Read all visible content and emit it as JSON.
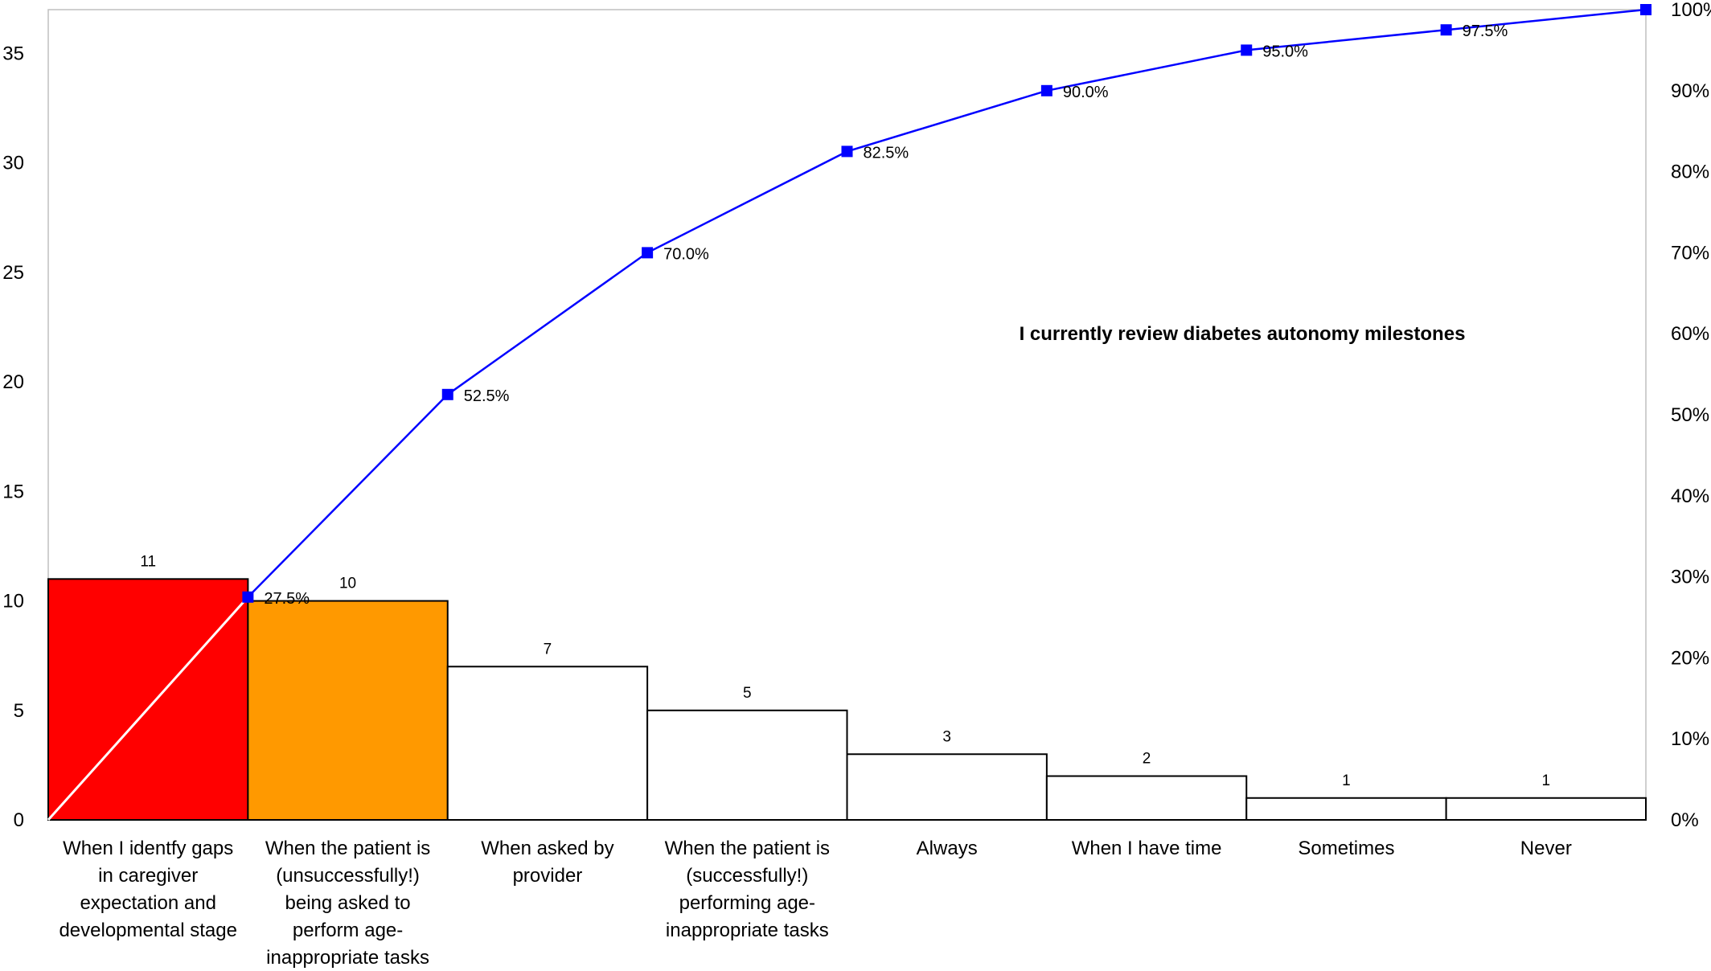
{
  "chart_data": {
    "type": "bar",
    "title": "I currently review diabetes autonomy milestones",
    "categories": [
      [
        "When I identfy gaps",
        "in caregiver",
        "expectation and",
        "developmental stage"
      ],
      [
        "When the patient is",
        "(unsuccessfully!)",
        "being asked to",
        "perform age-",
        "inappropriate tasks"
      ],
      [
        "When asked by",
        "provider"
      ],
      [
        "When the patient is",
        "(successfully!)",
        "performing age-",
        "inappropriate tasks"
      ],
      [
        "Always"
      ],
      [
        "When I have time"
      ],
      [
        "Sometimes"
      ],
      [
        "Never"
      ]
    ],
    "values": [
      11,
      10,
      7,
      5,
      3,
      2,
      1,
      1
    ],
    "value_labels": [
      "11",
      "10",
      "7",
      "5",
      "3",
      "2",
      "1",
      "1"
    ],
    "bar_colors": [
      "#ff0000",
      "#ff9900",
      "#ffffff",
      "#ffffff",
      "#ffffff",
      "#ffffff",
      "#ffffff",
      "#ffffff"
    ],
    "cumulative": {
      "values": [
        27.5,
        52.5,
        70.0,
        82.5,
        90.0,
        95.0,
        97.5,
        100.0
      ],
      "labels": [
        "27.5%",
        "52.5%",
        "70.0%",
        "82.5%",
        "90.0%",
        "95.0%",
        "97.5%",
        ""
      ],
      "color": "#0000ff"
    },
    "y_left": {
      "ylim": [
        0,
        37
      ],
      "ticks": [
        0,
        5,
        10,
        15,
        20,
        25,
        30,
        35
      ]
    },
    "y_right": {
      "ylim": [
        0,
        100
      ],
      "ticks": [
        "0%",
        "10%",
        "20%",
        "30%",
        "40%",
        "50%",
        "60%",
        "70%",
        "80%",
        "90%",
        "100%"
      ]
    },
    "grid": false,
    "legend": "none"
  }
}
